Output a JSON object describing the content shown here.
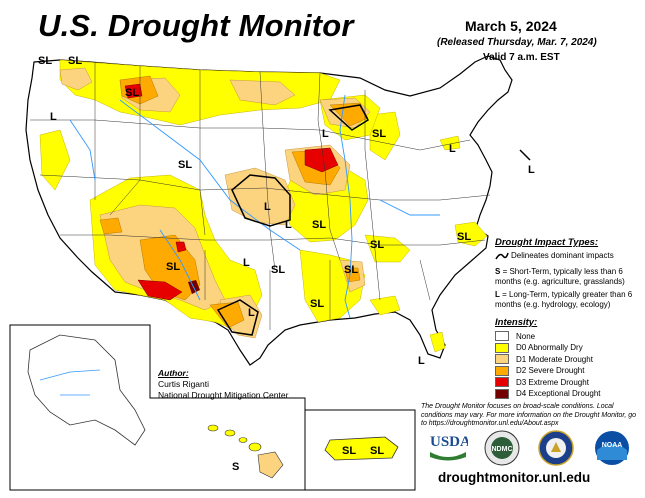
{
  "header": {
    "title": "U.S. Drought Monitor",
    "date": "March 5, 2024",
    "released": "(Released Thursday, Mar. 7, 2024)",
    "valid": "Valid 7 a.m. EST"
  },
  "impact_legend": {
    "heading": "Drought Impact Types:",
    "delineates": "Delineates dominant impacts",
    "s_label": "S",
    "s_text": "= Short-Term, typically less than 6 months (e.g. agriculture, grasslands)",
    "l_label": "L",
    "l_text": "= Long-Term, typically greater than 6 months (e.g. hydrology, ecology)"
  },
  "intensity_legend": {
    "heading": "Intensity:",
    "items": [
      {
        "label": "None",
        "color": "#ffffff"
      },
      {
        "label": "D0 Abnormally Dry",
        "color": "#ffff00"
      },
      {
        "label": "D1 Moderate Drought",
        "color": "#fcd37f"
      },
      {
        "label": "D2 Severe Drought",
        "color": "#ffaa00"
      },
      {
        "label": "D3 Extreme Drought",
        "color": "#e60000"
      },
      {
        "label": "D4 Exceptional Drought",
        "color": "#730000"
      }
    ]
  },
  "author": {
    "heading": "Author:",
    "name": "Curtis Riganti",
    "org": "National Drought Mitigation Center"
  },
  "note": "The Drought Monitor focuses on broad-scale conditions. Local conditions may vary. For more information on the Drought Monitor, go to https://droughtmonitor.unl.edu/About.aspx",
  "url": "droughtmonitor.unl.edu",
  "logos": {
    "usda": "USDA",
    "ndmc": "NDMC",
    "noaa": "NOAA"
  },
  "map_labels": {
    "sl": "SL",
    "l": "L",
    "s": "S"
  },
  "colors": {
    "d0": "#ffff00",
    "d1": "#fcd37f",
    "d2": "#ffaa00",
    "d3": "#e60000",
    "d4": "#730000",
    "water": "#3399ff"
  }
}
